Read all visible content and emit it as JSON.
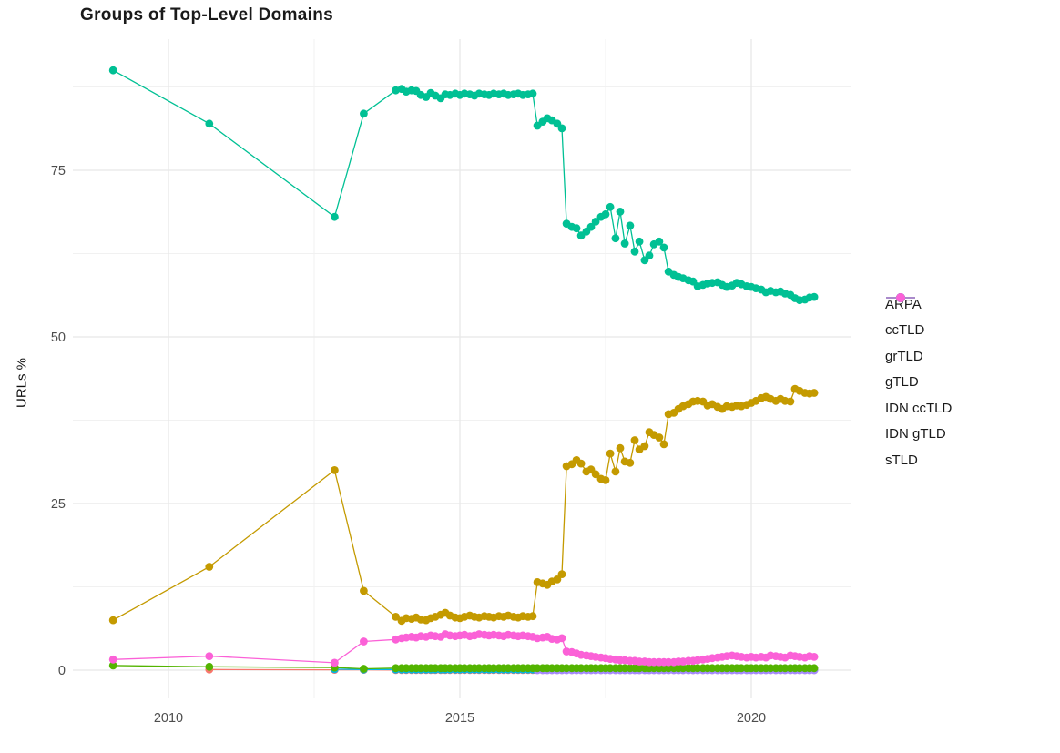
{
  "title": "Groups of Top-Level Domains",
  "y_axis": {
    "label": "URLs %",
    "ticks": [
      0,
      25,
      50,
      75
    ]
  },
  "x_axis": {
    "ticks": [
      2010,
      2015,
      2020
    ]
  },
  "legend": {
    "items": [
      {
        "label": "ARPA",
        "color": "#F8766D"
      },
      {
        "label": "ccTLD",
        "color": "#C49A00"
      },
      {
        "label": "grTLD",
        "color": "#53B400"
      },
      {
        "label": "gTLD",
        "color": "#00C094"
      },
      {
        "label": "IDN ccTLD",
        "color": "#00B6EB"
      },
      {
        "label": "IDN gTLD",
        "color": "#A58AFF"
      },
      {
        "label": "sTLD",
        "color": "#FB61D7"
      }
    ]
  },
  "chart_data": {
    "type": "line",
    "title": "Groups of Top-Level Domains",
    "xlabel": "",
    "ylabel": "URLs %",
    "xlim": [
      2008.4,
      2021.7
    ],
    "ylim": [
      -4.5,
      94.5
    ],
    "x_ticks": [
      2010,
      2015,
      2020
    ],
    "y_ticks": [
      0,
      25,
      50,
      75
    ],
    "grid": true,
    "legend_position": "right",
    "x": [
      2009.05,
      2010.7,
      2012.85,
      2013.35,
      2013.9,
      2014.0,
      2014.08,
      2014.17,
      2014.25,
      2014.33,
      2014.42,
      2014.5,
      2014.58,
      2014.67,
      2014.75,
      2014.83,
      2014.92,
      2015.0,
      2015.08,
      2015.17,
      2015.25,
      2015.33,
      2015.42,
      2015.5,
      2015.58,
      2015.67,
      2015.75,
      2015.83,
      2015.92,
      2016.0,
      2016.08,
      2016.17,
      2016.25,
      2016.33,
      2016.42,
      2016.5,
      2016.58,
      2016.67,
      2016.75,
      2016.83,
      2016.92,
      2017.0,
      2017.08,
      2017.17,
      2017.25,
      2017.33,
      2017.42,
      2017.5,
      2017.58,
      2017.67,
      2017.75,
      2017.83,
      2017.92,
      2018.0,
      2018.08,
      2018.17,
      2018.25,
      2018.33,
      2018.42,
      2018.5,
      2018.58,
      2018.67,
      2018.75,
      2018.83,
      2018.92,
      2019.0,
      2019.08,
      2019.17,
      2019.25,
      2019.33,
      2019.42,
      2019.5,
      2019.58,
      2019.67,
      2019.75,
      2019.83,
      2019.92,
      2020.0,
      2020.08,
      2020.17,
      2020.25,
      2020.33,
      2020.42,
      2020.5,
      2020.58,
      2020.67,
      2020.75,
      2020.83,
      2020.92,
      2021.0,
      2021.08
    ],
    "series": [
      {
        "name": "ARPA",
        "color": "#F8766D",
        "values": [
          null,
          0.1,
          0.05,
          0.05,
          0.02,
          0.02,
          0.02,
          0.02,
          0.02,
          0.02,
          0.02,
          0.02,
          0.02,
          0.02,
          0.02,
          0.02,
          0.02,
          0.02,
          0.02,
          0.02,
          0.02,
          0.02,
          0.02,
          0.02,
          0.02,
          0.02,
          0.02,
          0.02,
          0.02,
          0.02,
          0.02,
          0.02,
          0.02,
          0.02,
          0.02,
          0.02,
          0.02,
          0.02,
          0.02,
          0.02,
          0.02,
          0.02,
          0.02,
          0.02,
          0.02,
          0.02,
          0.02,
          0.02,
          0.02,
          0.02,
          0.02,
          0.02,
          0.02,
          0.02,
          0.02,
          0.02,
          0.02,
          0.02,
          0.02,
          0.02,
          0.02,
          0.02,
          0.02,
          0.02,
          0.02,
          0.02,
          0.02,
          0.02,
          0.02,
          0.02,
          0.02,
          0.02,
          0.02,
          0.02,
          0.02,
          0.02,
          0.02,
          0.02,
          0.02,
          0.02,
          0.02,
          0.02,
          0.02,
          0.02,
          0.02,
          0.02,
          0.02,
          0.02,
          0.02,
          0.02,
          0.02
        ]
      },
      {
        "name": "IDN ccTLD",
        "color": "#00B6EB",
        "values": [
          null,
          null,
          0.15,
          0.1,
          0.1,
          0.1,
          0.1,
          0.1,
          0.1,
          0.1,
          0.1,
          0.1,
          0.1,
          0.1,
          0.1,
          0.1,
          0.1,
          0.1,
          0.1,
          0.1,
          0.1,
          0.1,
          0.1,
          0.1,
          0.1,
          0.1,
          0.1,
          0.1,
          0.1,
          0.1,
          0.1,
          0.1,
          0.1,
          0.1,
          0.1,
          0.1,
          0.1,
          0.1,
          0.1,
          0.1,
          0.1,
          0.1,
          0.1,
          0.1,
          0.1,
          0.1,
          0.1,
          0.1,
          0.1,
          0.1,
          0.1,
          0.1,
          0.1,
          0.1,
          0.1,
          0.1,
          0.1,
          0.1,
          0.1,
          0.1,
          0.1,
          0.1,
          0.1,
          0.1,
          0.1,
          0.1,
          0.1,
          0.1,
          0.1,
          0.1,
          0.1,
          0.1,
          0.1,
          0.1,
          0.1,
          0.1,
          0.1,
          0.1,
          0.1,
          0.1,
          0.1,
          0.1,
          0.1,
          0.1,
          0.1,
          0.1,
          0.1,
          0.1,
          0.1,
          0.1,
          0.1
        ]
      },
      {
        "name": "IDN gTLD",
        "color": "#A58AFF",
        "values": [
          null,
          null,
          null,
          null,
          null,
          null,
          null,
          null,
          null,
          null,
          null,
          null,
          null,
          null,
          null,
          null,
          null,
          null,
          null,
          null,
          null,
          null,
          null,
          null,
          null,
          null,
          null,
          null,
          null,
          null,
          null,
          null,
          null,
          0.0,
          0.0,
          0.0,
          0.0,
          0.0,
          0.0,
          0.0,
          0.0,
          0.0,
          0.0,
          0.0,
          0.0,
          0.0,
          0.0,
          0.0,
          0.0,
          0.0,
          0.0,
          0.0,
          0.0,
          0.0,
          0.0,
          0.0,
          0.0,
          0.0,
          0.0,
          0.0,
          0.0,
          0.0,
          0.0,
          0.0,
          0.0,
          0.0,
          0.0,
          0.0,
          0.0,
          0.0,
          0.0,
          0.0,
          0.0,
          0.0,
          0.0,
          0.0,
          0.0,
          0.0,
          0.0,
          0.0,
          0.0,
          0.0,
          0.0,
          0.0,
          0.0,
          0.0,
          0.0,
          0.0,
          0.0,
          0.0,
          0.0
        ]
      },
      {
        "name": "grTLD",
        "color": "#53B400",
        "values": [
          0.7,
          0.5,
          0.4,
          0.2,
          0.3,
          0.3,
          0.3,
          0.3,
          0.3,
          0.3,
          0.3,
          0.3,
          0.3,
          0.3,
          0.3,
          0.3,
          0.3,
          0.3,
          0.3,
          0.3,
          0.3,
          0.3,
          0.3,
          0.3,
          0.3,
          0.3,
          0.3,
          0.3,
          0.3,
          0.3,
          0.3,
          0.3,
          0.3,
          0.3,
          0.3,
          0.3,
          0.3,
          0.3,
          0.3,
          0.3,
          0.3,
          0.3,
          0.3,
          0.3,
          0.3,
          0.3,
          0.3,
          0.3,
          0.3,
          0.3,
          0.3,
          0.3,
          0.3,
          0.3,
          0.3,
          0.3,
          0.3,
          0.3,
          0.3,
          0.3,
          0.3,
          0.3,
          0.3,
          0.3,
          0.3,
          0.3,
          0.3,
          0.3,
          0.3,
          0.3,
          0.3,
          0.3,
          0.3,
          0.3,
          0.3,
          0.3,
          0.3,
          0.3,
          0.3,
          0.3,
          0.3,
          0.3,
          0.3,
          0.3,
          0.3,
          0.3,
          0.3,
          0.3,
          0.3,
          0.3,
          0.3
        ]
      },
      {
        "name": "ccTLD",
        "color": "#C49A00",
        "values": [
          7.5,
          15.5,
          30.0,
          11.9,
          8.0,
          7.4,
          7.8,
          7.7,
          7.9,
          7.6,
          7.5,
          7.8,
          8.0,
          8.3,
          8.6,
          8.2,
          7.9,
          7.8,
          8.0,
          8.2,
          8.0,
          7.9,
          8.1,
          8.0,
          7.9,
          8.1,
          8.0,
          8.2,
          8.0,
          7.9,
          8.1,
          8.0,
          8.1,
          13.2,
          13.0,
          12.8,
          13.3,
          13.6,
          14.4,
          30.6,
          30.9,
          31.5,
          31.0,
          29.8,
          30.1,
          29.4,
          28.7,
          28.5,
          32.5,
          29.8,
          33.3,
          31.3,
          31.1,
          34.5,
          33.1,
          33.6,
          35.7,
          35.3,
          34.9,
          33.9,
          38.4,
          38.6,
          39.2,
          39.6,
          39.9,
          40.3,
          40.4,
          40.3,
          39.7,
          39.9,
          39.5,
          39.2,
          39.6,
          39.5,
          39.7,
          39.6,
          39.8,
          40.1,
          40.4,
          40.8,
          41.0,
          40.7,
          40.4,
          40.7,
          40.4,
          40.3,
          42.2,
          41.9,
          41.6,
          41.5,
          41.6
        ]
      },
      {
        "name": "gTLD",
        "color": "#00C094",
        "values": [
          90.0,
          82.0,
          68.0,
          83.5,
          87.0,
          87.2,
          86.8,
          87.0,
          86.9,
          86.3,
          86.0,
          86.6,
          86.2,
          85.8,
          86.4,
          86.3,
          86.5,
          86.3,
          86.5,
          86.4,
          86.2,
          86.5,
          86.4,
          86.3,
          86.5,
          86.4,
          86.5,
          86.3,
          86.4,
          86.5,
          86.3,
          86.4,
          86.5,
          81.7,
          82.3,
          82.8,
          82.5,
          82.0,
          81.3,
          67.0,
          66.5,
          66.3,
          65.2,
          65.8,
          66.5,
          67.3,
          68.0,
          68.4,
          69.5,
          64.8,
          68.8,
          64.0,
          66.7,
          62.8,
          64.3,
          61.5,
          62.2,
          63.9,
          64.3,
          63.4,
          59.8,
          59.3,
          59.0,
          58.8,
          58.5,
          58.3,
          57.6,
          57.8,
          58.0,
          58.1,
          58.2,
          57.8,
          57.5,
          57.7,
          58.1,
          57.9,
          57.6,
          57.5,
          57.3,
          57.1,
          56.7,
          56.9,
          56.7,
          56.8,
          56.5,
          56.3,
          55.8,
          55.5,
          55.6,
          55.9,
          56.0
        ]
      },
      {
        "name": "sTLD",
        "color": "#FB61D7",
        "values": [
          1.6,
          2.1,
          1.1,
          4.3,
          4.6,
          4.8,
          4.9,
          5.0,
          4.9,
          5.1,
          5.0,
          5.2,
          5.1,
          5.0,
          5.4,
          5.2,
          5.1,
          5.2,
          5.3,
          5.1,
          5.2,
          5.4,
          5.3,
          5.2,
          5.3,
          5.2,
          5.1,
          5.3,
          5.2,
          5.1,
          5.2,
          5.1,
          5.0,
          4.8,
          4.9,
          5.0,
          4.7,
          4.6,
          4.8,
          2.8,
          2.7,
          2.5,
          2.3,
          2.2,
          2.1,
          2.0,
          1.9,
          1.8,
          1.7,
          1.6,
          1.5,
          1.5,
          1.4,
          1.4,
          1.3,
          1.3,
          1.2,
          1.2,
          1.2,
          1.2,
          1.2,
          1.2,
          1.3,
          1.3,
          1.4,
          1.4,
          1.5,
          1.6,
          1.7,
          1.8,
          1.9,
          2.0,
          2.1,
          2.2,
          2.1,
          2.0,
          1.9,
          2.0,
          1.9,
          2.0,
          1.9,
          2.2,
          2.1,
          2.0,
          1.9,
          2.2,
          2.1,
          2.0,
          1.9,
          2.1,
          2.0
        ]
      }
    ]
  }
}
